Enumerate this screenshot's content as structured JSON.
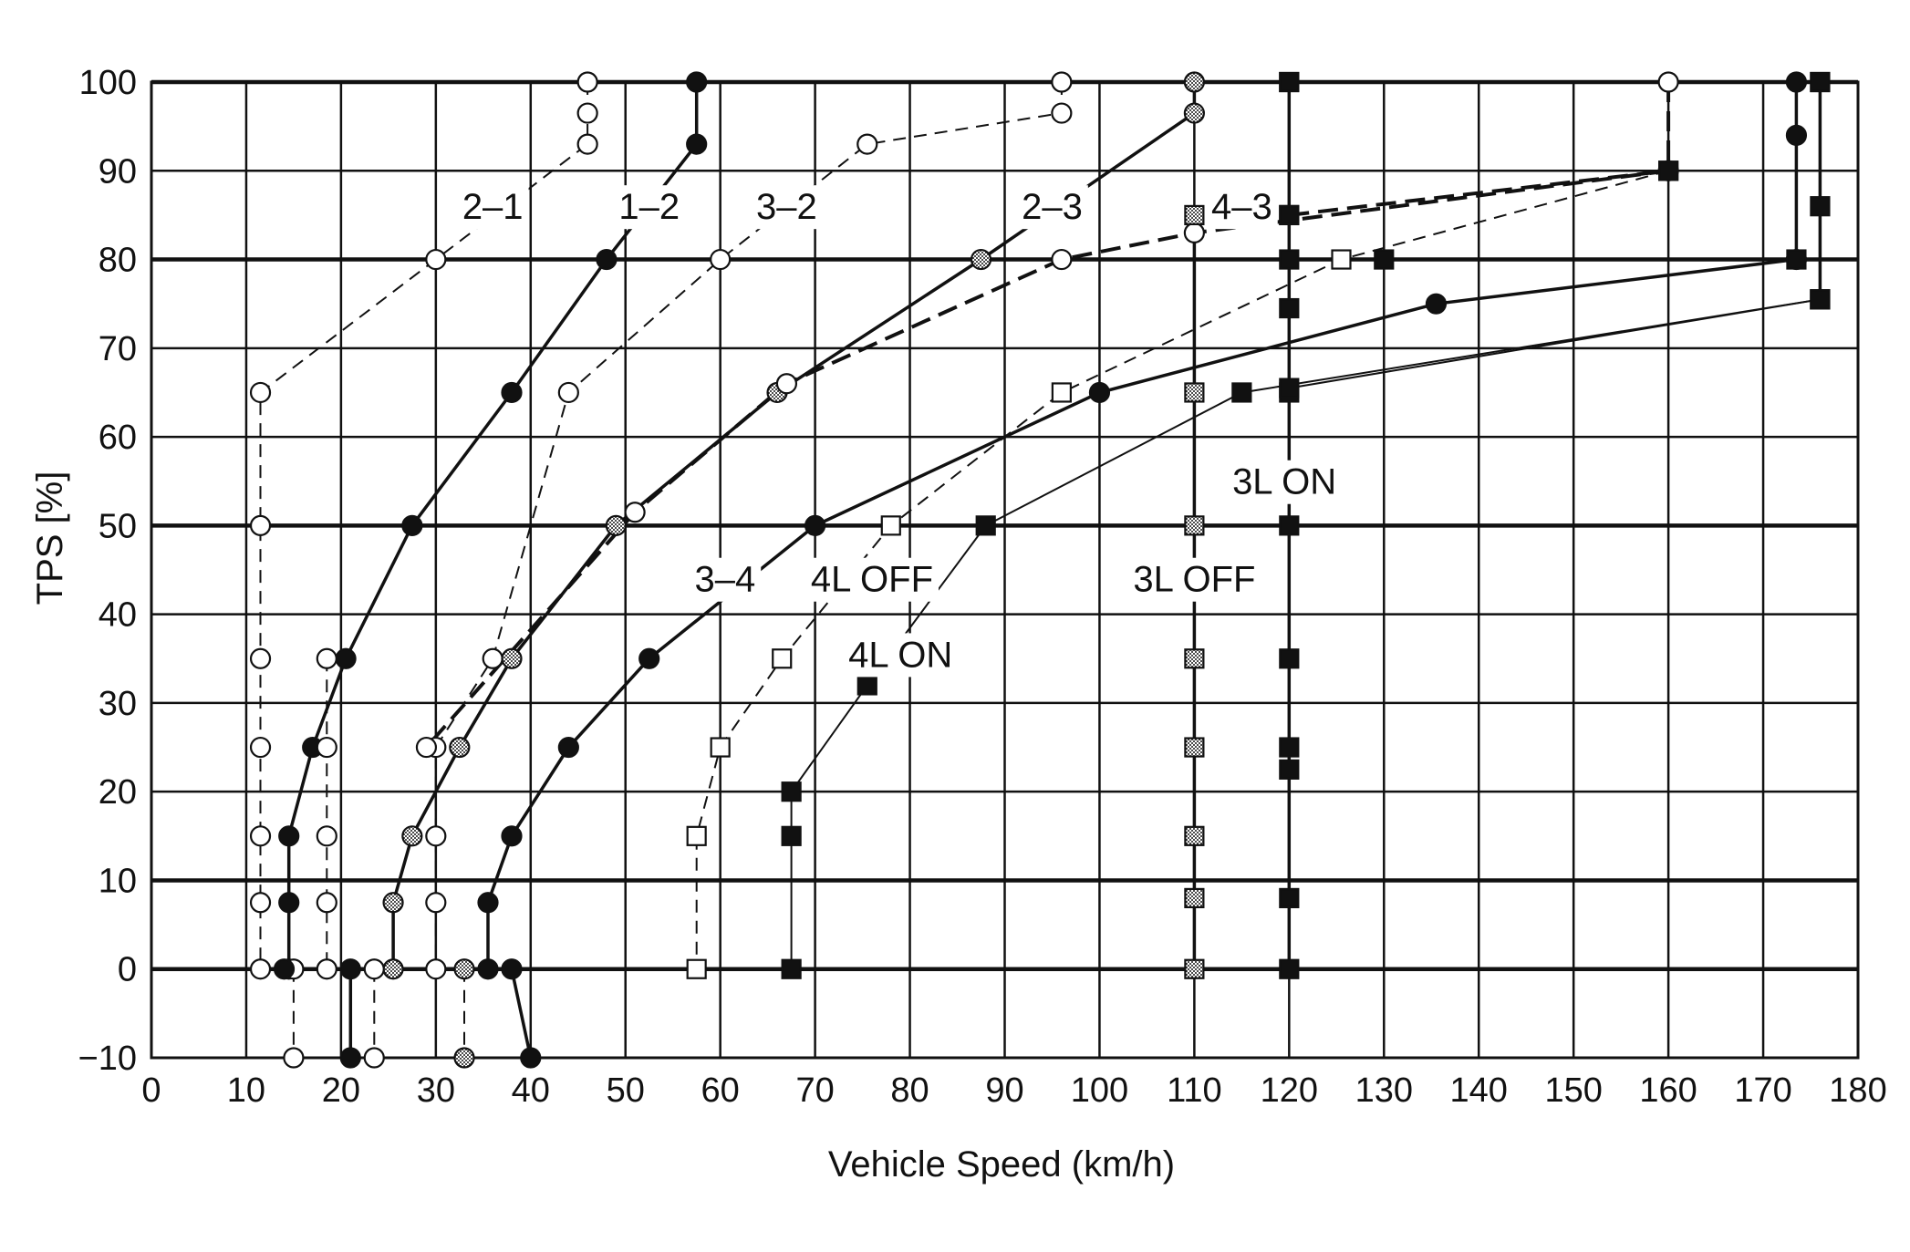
{
  "chart_data": {
    "type": "line",
    "title": "",
    "xlabel": "Vehicle Speed (km/h)",
    "ylabel": "TPS [%]",
    "xlim": [
      0,
      180
    ],
    "ylim": [
      -10,
      100
    ],
    "x_ticks": [
      0,
      10,
      20,
      30,
      40,
      50,
      60,
      70,
      80,
      90,
      100,
      110,
      120,
      130,
      140,
      150,
      160,
      170,
      180
    ],
    "y_ticks": [
      -10,
      0,
      10,
      20,
      30,
      40,
      50,
      60,
      70,
      80,
      90,
      100
    ],
    "grid": true,
    "series": [
      {
        "name": "2–1",
        "style": "dashed",
        "marker": "open-circle",
        "points": [
          [
            46,
            100
          ],
          [
            46,
            96.5
          ],
          [
            46,
            93
          ],
          [
            30,
            80
          ],
          [
            11.5,
            65
          ],
          [
            11.5,
            50
          ],
          [
            11.5,
            35
          ],
          [
            11.5,
            25
          ],
          [
            11.5,
            15
          ],
          [
            11.5,
            7.5
          ],
          [
            11.5,
            0
          ]
        ]
      },
      {
        "name": "1–2",
        "style": "solid",
        "marker": "filled-circle",
        "points": [
          [
            57.5,
            100
          ],
          [
            57.5,
            93
          ],
          [
            48,
            80
          ],
          [
            38,
            65
          ],
          [
            27.5,
            50
          ],
          [
            20.5,
            35
          ],
          [
            17,
            25
          ],
          [
            14.5,
            15
          ],
          [
            14.5,
            7.5
          ],
          [
            14.5,
            0
          ]
        ]
      },
      {
        "name": "3–2",
        "style": "dashed",
        "marker": "open-circle",
        "points": [
          [
            96,
            100
          ],
          [
            96,
            96.5
          ],
          [
            75.5,
            93
          ],
          [
            60,
            80
          ],
          [
            44,
            65
          ],
          [
            36,
            35
          ],
          [
            30,
            25
          ],
          [
            30,
            15
          ],
          [
            30,
            7.5
          ],
          [
            30,
            0
          ]
        ]
      },
      {
        "name": "2–3",
        "style": "solid",
        "marker": "dotted-circle",
        "points": [
          [
            110,
            100
          ],
          [
            110,
            96.5
          ],
          [
            87.5,
            80
          ],
          [
            66,
            65
          ],
          [
            49,
            50
          ],
          [
            38,
            35
          ],
          [
            32.5,
            25
          ],
          [
            27.5,
            15
          ],
          [
            25.5,
            7.5
          ],
          [
            25.5,
            0
          ]
        ]
      },
      {
        "name": "3–4",
        "style": "solid",
        "marker": "filled-circle",
        "points": [
          [
            173.5,
            100
          ],
          [
            173.5,
            94
          ],
          [
            173.5,
            80
          ],
          [
            135.5,
            75
          ],
          [
            100,
            65
          ],
          [
            70,
            50
          ],
          [
            52.5,
            35
          ],
          [
            44,
            25
          ],
          [
            38,
            15
          ],
          [
            35.5,
            7.5
          ],
          [
            35.5,
            0
          ]
        ]
      },
      {
        "name": "4–3",
        "style": "bold-dashed",
        "marker": "open-circle",
        "points": [
          [
            160,
            100
          ],
          [
            160,
            90
          ],
          [
            110,
            83
          ],
          [
            96,
            80
          ],
          [
            67,
            66
          ],
          [
            51,
            51.5
          ],
          [
            29,
            25
          ]
        ]
      },
      {
        "name": "4L OFF",
        "style": "dashed",
        "marker": "open-square",
        "points": [
          [
            160,
            90
          ],
          [
            125.5,
            80
          ],
          [
            96,
            65
          ],
          [
            78,
            50
          ],
          [
            66.5,
            35
          ],
          [
            60,
            25
          ],
          [
            57.5,
            15
          ],
          [
            57.5,
            0
          ]
        ]
      },
      {
        "name": "4L ON",
        "style": "thin-solid",
        "marker": "filled-square",
        "points": [
          [
            176,
            75.5
          ],
          [
            115,
            65
          ],
          [
            88,
            50
          ],
          [
            75.5,
            32
          ],
          [
            67.5,
            20
          ],
          [
            67.5,
            15
          ],
          [
            67.5,
            0
          ]
        ]
      },
      {
        "name": "3L OFF",
        "style": "solid",
        "marker": "dotted-square",
        "points": [
          [
            110,
            85
          ],
          [
            110,
            65
          ],
          [
            110,
            50
          ],
          [
            110,
            35
          ],
          [
            110,
            25
          ],
          [
            110,
            15
          ],
          [
            110,
            8
          ],
          [
            110,
            0
          ]
        ]
      },
      {
        "name": "3L ON",
        "style": "solid",
        "marker": "filled-square",
        "points": [
          [
            120,
            100
          ],
          [
            120,
            85
          ],
          [
            120,
            74.5
          ],
          [
            120,
            65
          ],
          [
            120,
            50
          ],
          [
            120,
            35
          ],
          [
            120,
            25
          ],
          [
            120,
            22.5
          ],
          [
            120,
            8
          ],
          [
            120,
            0
          ]
        ]
      },
      {
        "name": "",
        "style": "solid",
        "marker": "filled-square",
        "points": [
          [
            176,
            100
          ],
          [
            176,
            86
          ],
          [
            176,
            75.5
          ]
        ]
      },
      {
        "name": "",
        "style": "bold-dashed",
        "marker": "filled-square",
        "points": [
          [
            120,
            85
          ],
          [
            160,
            90
          ]
        ]
      },
      {
        "name": "",
        "style": "solid",
        "marker": "filled-square",
        "points": [
          [
            120,
            80
          ],
          [
            130,
            80
          ],
          [
            173.5,
            80
          ]
        ]
      },
      {
        "name": "",
        "style": "solid",
        "marker": "filled-square",
        "points": [
          [
            120,
            100
          ],
          [
            176,
            100
          ]
        ]
      },
      {
        "name": "",
        "style": "thin-solid",
        "marker": "filled-square",
        "points": [
          [
            120,
            65.5
          ],
          [
            176,
            75.5
          ]
        ]
      },
      {
        "name": "",
        "style": "solid",
        "marker": "filled-circle",
        "points": [
          [
            21,
            0
          ],
          [
            21,
            -10
          ]
        ]
      },
      {
        "name": "",
        "style": "solid",
        "marker": "filled-circle",
        "points": [
          [
            38,
            0
          ],
          [
            40,
            -10
          ]
        ]
      },
      {
        "name": "",
        "style": "dashed",
        "marker": "open-circle",
        "points": [
          [
            15,
            0
          ],
          [
            15,
            -10
          ]
        ]
      },
      {
        "name": "",
        "style": "dashed",
        "marker": "open-circle",
        "points": [
          [
            23.5,
            0
          ],
          [
            23.5,
            -10
          ]
        ]
      },
      {
        "name": "",
        "style": "dashed",
        "marker": "dotted-circle",
        "points": [
          [
            33,
            0
          ],
          [
            33,
            -10
          ]
        ]
      },
      {
        "name": "",
        "style": "dashed",
        "marker": "open-circle",
        "points": [
          [
            18.5,
            35
          ],
          [
            18.5,
            25
          ],
          [
            18.5,
            15
          ],
          [
            18.5,
            7.5
          ],
          [
            18.5,
            0
          ]
        ]
      },
      {
        "name": "",
        "style": "solid",
        "marker": "filled-circle",
        "points": [
          [
            14,
            0
          ]
        ]
      }
    ],
    "annotations": [
      {
        "text": "2–1",
        "x": 36,
        "y": 86
      },
      {
        "text": "1–2",
        "x": 52.5,
        "y": 86
      },
      {
        "text": "3–2",
        "x": 67,
        "y": 86
      },
      {
        "text": "2–3",
        "x": 95,
        "y": 86
      },
      {
        "text": "4–3",
        "x": 115,
        "y": 86
      },
      {
        "text": "3–4",
        "x": 60.5,
        "y": 44
      },
      {
        "text": "4L OFF",
        "x": 76,
        "y": 44
      },
      {
        "text": "4L ON",
        "x": 79,
        "y": 35.5
      },
      {
        "text": "3L OFF",
        "x": 110,
        "y": 44
      },
      {
        "text": "3L ON",
        "x": 119.5,
        "y": 55
      }
    ]
  }
}
